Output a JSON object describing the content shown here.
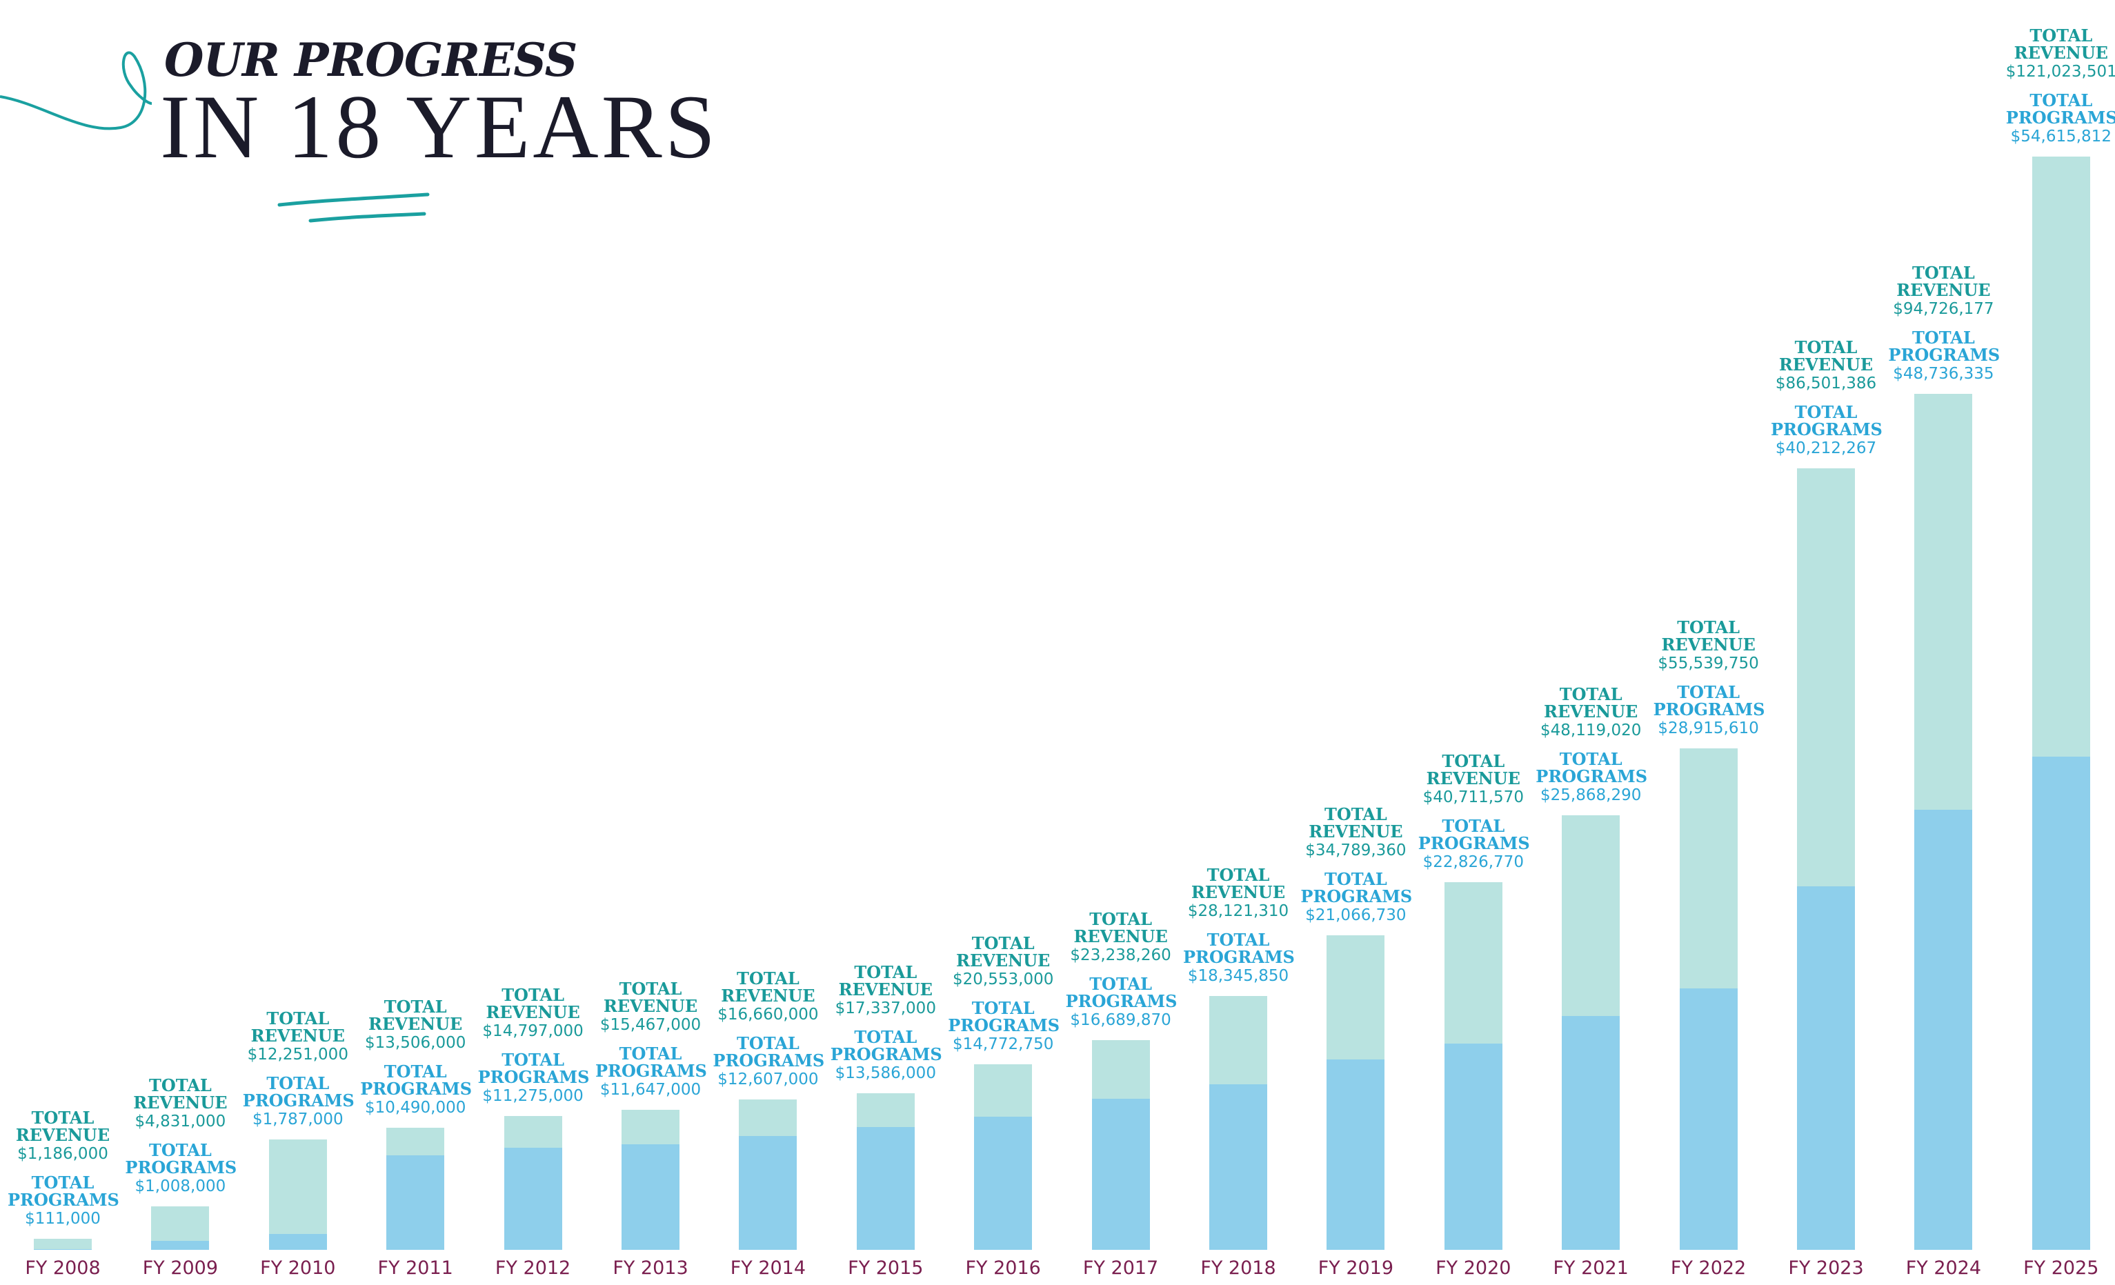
{
  "chart_data": {
    "type": "bar",
    "title": "OUR PROGRESS",
    "subtitle": "IN 18 YEARS",
    "categories": [
      "FY 2008",
      "FY 2009",
      "FY 2010",
      "FY 2011",
      "FY 2012",
      "FY 2013",
      "FY 2014",
      "FY 2015",
      "FY 2016",
      "FY 2017",
      "FY 2018",
      "FY 2019",
      "FY 2020",
      "FY 2021",
      "FY 2022",
      "FY 2023",
      "FY 2024",
      "FY 2025"
    ],
    "series": [
      {
        "name": "TOTAL REVENUE",
        "color": "#b9e3e0",
        "label_color": "#1a9a9a",
        "values": [
          1186000,
          4831000,
          12251000,
          13506000,
          14797000,
          15467000,
          16660000,
          17337000,
          20553000,
          23238260,
          28121310,
          34789360,
          40711570,
          48119020,
          55539750,
          86501386,
          94726177,
          121023501
        ],
        "value_labels": [
          "$1,186,000",
          "$4,831,000",
          "$12,251,000",
          "$13,506,000",
          "$14,797,000",
          "$15,467,000",
          "$16,660,000",
          "$17,337,000",
          "$20,553,000",
          "$23,238,260",
          "$28,121,310",
          "$34,789,360",
          "$40,711,570",
          "$48,119,020",
          "$55,539,750",
          "$86,501,386",
          "$94,726,177",
          "$121,023,501"
        ]
      },
      {
        "name": "TOTAL PROGRAMS",
        "color": "#8ecfeb",
        "label_color": "#2aa5d6",
        "values": [
          111000,
          1008000,
          1787000,
          10490000,
          11275000,
          11647000,
          12607000,
          13586000,
          14772750,
          16689870,
          18345850,
          21066730,
          22826770,
          25868290,
          28915610,
          40212267,
          48736335,
          54615812
        ],
        "value_labels": [
          "$111,000",
          "$1,008,000",
          "$1,787,000",
          "$10,490,000",
          "$11,275,000",
          "$11,647,000",
          "$12,607,000",
          "$13,586,000",
          "$14,772,750",
          "$16,689,870",
          "$18,345,850",
          "$21,066,730",
          "$22,826,770",
          "$25,868,290",
          "$28,915,610",
          "$40,212,267",
          "$48,736,335",
          "$54,615,812"
        ]
      }
    ]
  }
}
